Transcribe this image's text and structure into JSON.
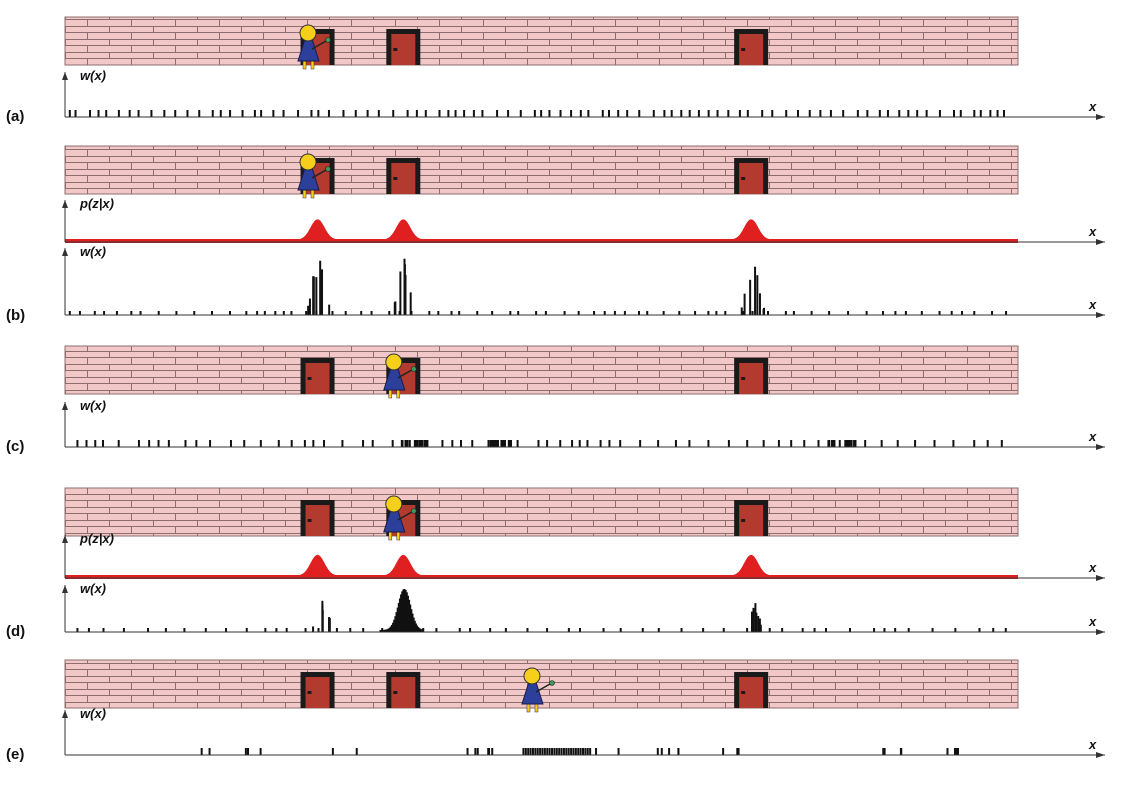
{
  "colors": {
    "brick_fill": "#f2c7c7",
    "brick_mortar": "#8c6e6e",
    "door_frame": "#1a1a1a",
    "door_fill": "#b33a2e",
    "robot_body": "#2c3f9a",
    "robot_head": "#f5cf1a",
    "likelihood_curve": "#e02020",
    "particles": "#111111"
  },
  "door_positions": [
    0.265,
    0.355,
    0.72
  ],
  "robot_positions": [
    0.255,
    0.345,
    0.345,
    0.345,
    0.49
  ],
  "axis": {
    "x_label": "x"
  },
  "likelihood": {
    "label": "p(z|x)",
    "peak_centers": [
      0.265,
      0.355,
      0.72
    ],
    "peak_width": 0.007
  },
  "panels": [
    {
      "id": "a",
      "label": "(a)",
      "robot_x": 0.255,
      "plots": [
        {
          "type": "weights",
          "label": "w(x)",
          "distribution": "uniform"
        }
      ]
    },
    {
      "id": "b",
      "label": "(b)",
      "robot_x": 0.255,
      "plots": [
        {
          "type": "likelihood",
          "label": "p(z|x)"
        },
        {
          "type": "weights",
          "label": "w(x)",
          "distribution": "peaked_at_doors"
        }
      ]
    },
    {
      "id": "c",
      "label": "(c)",
      "robot_x": 0.345,
      "plots": [
        {
          "type": "weights",
          "label": "w(x)",
          "distribution": "resampled_shifted"
        }
      ]
    },
    {
      "id": "d",
      "label": "(d)",
      "robot_x": 0.345,
      "plots": [
        {
          "type": "likelihood",
          "label": "p(z|x)"
        },
        {
          "type": "weights",
          "label": "w(x)",
          "distribution": "concentrated_second_door"
        }
      ]
    },
    {
      "id": "e",
      "label": "(e)",
      "robot_x": 0.49,
      "plots": [
        {
          "type": "weights",
          "label": "w(x)",
          "distribution": "resampled_cluster"
        }
      ]
    }
  ],
  "layout_note_excluded": true
}
